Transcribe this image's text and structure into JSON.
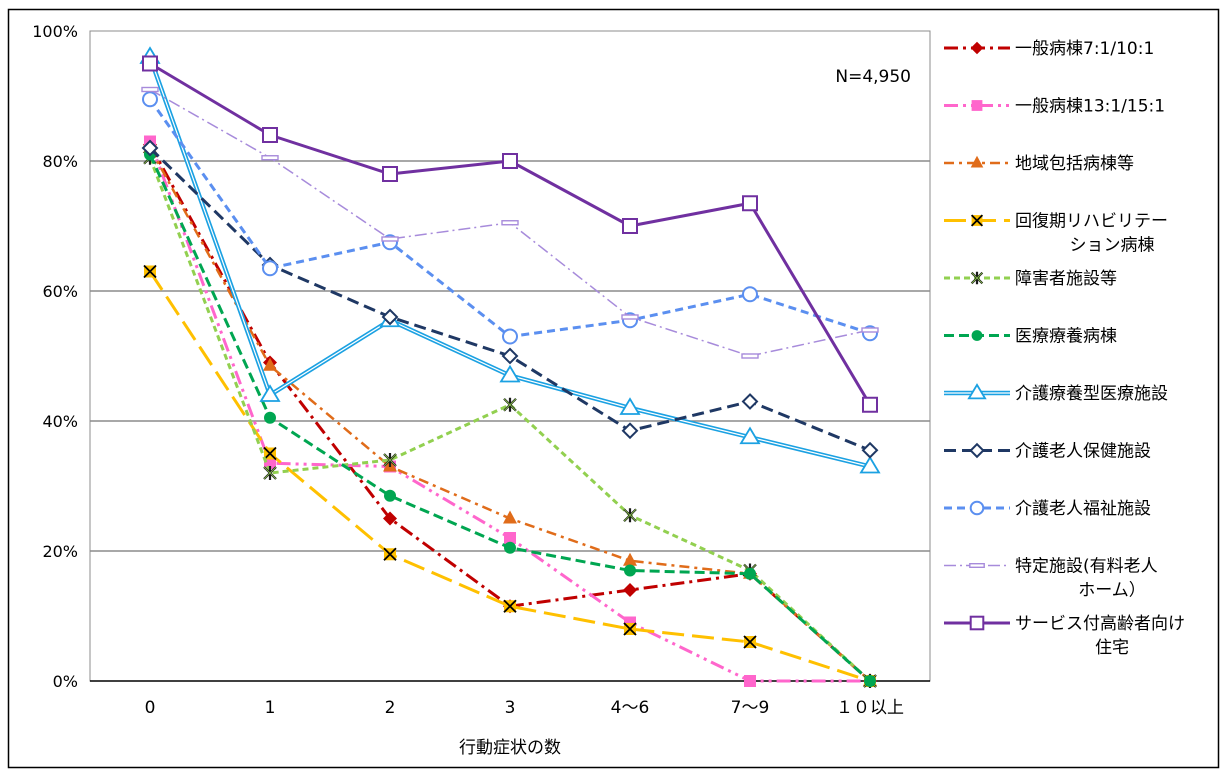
{
  "chart_data": {
    "type": "line",
    "annotation": "N=4,950",
    "xlabel": "行動症状の数",
    "ylabel": "",
    "categories": [
      "0",
      "1",
      "2",
      "3",
      "4～6",
      "7～9",
      "１０以上"
    ],
    "y_ticks": [
      "0%",
      "20%",
      "40%",
      "60%",
      "80%",
      "100%"
    ],
    "ylim": [
      0,
      100
    ],
    "grid": true,
    "legend_position": "right",
    "series": [
      {
        "name": "一般病棟7:1/10:1",
        "values": [
          82.5,
          49,
          25,
          11.5,
          14,
          16.5,
          0
        ],
        "color": "#c00000",
        "dash": "14,5,3,5",
        "width": 3,
        "marker": "diamond-filled"
      },
      {
        "name": "一般病棟13:1/15:1",
        "values": [
          83,
          33.5,
          33,
          22,
          9,
          0,
          0
        ],
        "color": "#ff66cc",
        "dash": "14,5,3,5,3,5",
        "width": 3,
        "marker": "square-filled"
      },
      {
        "name": "地域包括病棟等",
        "values": [
          82,
          48.5,
          33,
          25,
          18.5,
          16.5,
          0
        ],
        "color": "#e06c1a",
        "dash": "10,5,3,5",
        "width": 2.5,
        "marker": "triangle-filled"
      },
      {
        "name": "回復期リハビリテーション病棟",
        "values": [
          63,
          35,
          19.5,
          11.5,
          8,
          6,
          0
        ],
        "color": "#ffc000",
        "dash": "22,8",
        "width": 3,
        "marker": "x-box"
      },
      {
        "name": "障害者施設等",
        "values": [
          80.5,
          32,
          34,
          42.5,
          25.5,
          17,
          0
        ],
        "color": "#92d050",
        "dash": "6,4",
        "width": 3,
        "marker": "star-dark"
      },
      {
        "name": "医療療養病棟",
        "values": [
          81,
          40.5,
          28.5,
          20.5,
          17,
          16.5,
          0
        ],
        "color": "#00a651",
        "dash": "10,5",
        "width": 3,
        "marker": "circle-filled"
      },
      {
        "name": "介護療養型医療施設",
        "values": [
          96,
          44,
          55.5,
          47,
          42,
          37.5,
          33
        ],
        "color": "#1ba1e2",
        "dash": "",
        "width": 2,
        "double": true,
        "marker": "triangle-open"
      },
      {
        "name": "介護老人保健施設",
        "values": [
          82,
          64,
          56,
          50,
          38.5,
          43,
          35.5
        ],
        "color": "#1f3864",
        "dash": "12,6",
        "width": 3,
        "marker": "diamond-open"
      },
      {
        "name": "介護老人福祉施設",
        "values": [
          89.5,
          63.5,
          67.5,
          53,
          55.5,
          59.5,
          53.5
        ],
        "color": "#5b8ff0",
        "dash": "8,5",
        "width": 3,
        "marker": "circle-open"
      },
      {
        "name": "特定施設(有料老人ホーム）",
        "values": [
          91,
          80.5,
          68,
          70.5,
          56,
          50,
          54
        ],
        "color": "#a78bdb",
        "dash": "12,4,2,4",
        "width": 1.5,
        "marker": "dash"
      },
      {
        "name": "サービス付高齢者向け住宅",
        "values": [
          95,
          84,
          78,
          80,
          70,
          73.5,
          42.5
        ],
        "color": "#7030a0",
        "dash": "",
        "width": 3,
        "marker": "square-open"
      }
    ]
  },
  "legend": {
    "items": [
      {
        "lines": [
          "一般病棟7:1/10:1"
        ]
      },
      {
        "lines": [
          "一般病棟13:1/15:1"
        ]
      },
      {
        "lines": [
          "地域包括病棟等"
        ]
      },
      {
        "lines": [
          "回復期リハビリテー",
          "ション病棟"
        ]
      },
      {
        "lines": [
          "障害者施設等"
        ]
      },
      {
        "lines": [
          "医療療養病棟"
        ]
      },
      {
        "lines": [
          "介護療養型医療施設"
        ]
      },
      {
        "lines": [
          "介護老人保健施設"
        ]
      },
      {
        "lines": [
          "介護老人福祉施設"
        ]
      },
      {
        "lines": [
          "特定施設(有料老人",
          "ホーム）"
        ]
      },
      {
        "lines": [
          "サービス付高齢者向け",
          "住宅"
        ]
      }
    ]
  }
}
